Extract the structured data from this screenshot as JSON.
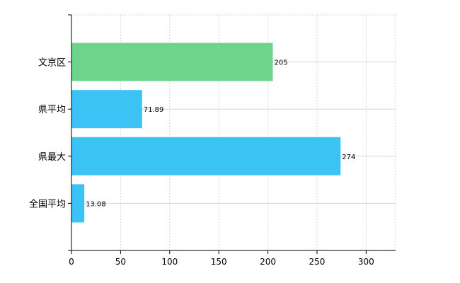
{
  "chart_data": {
    "type": "bar",
    "orientation": "horizontal",
    "categories": [
      "文京区",
      "県平均",
      "県最大",
      "全国平均"
    ],
    "values": [
      205,
      71.89,
      274,
      13.08
    ],
    "value_labels": [
      "205",
      "71.89",
      "274",
      "13.08"
    ],
    "bar_colors": [
      "#6dd48a",
      "#3cc3f5",
      "#3cc3f5",
      "#3cc3f5"
    ],
    "xlim": [
      0,
      330
    ],
    "xticks": [
      0,
      50,
      100,
      150,
      200,
      250,
      300
    ],
    "grid": true,
    "title": "",
    "xlabel": "",
    "ylabel": ""
  }
}
